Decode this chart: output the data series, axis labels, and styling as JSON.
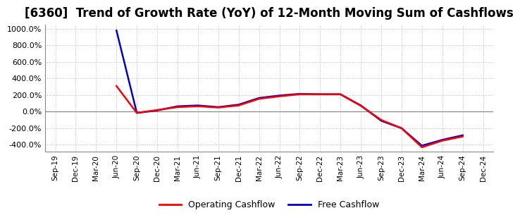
{
  "title": "[6360]  Trend of Growth Rate (YoY) of 12-Month Moving Sum of Cashflows",
  "title_fontsize": 12,
  "ylim": [
    -480,
    1050
  ],
  "yticks": [
    -400,
    -200,
    0,
    200,
    400,
    600,
    800,
    1000
  ],
  "background_color": "#ffffff",
  "grid_color": "#bbbbbb",
  "operating_color": "#ff0000",
  "free_color": "#0000cc",
  "legend_labels": [
    "Operating Cashflow",
    "Free Cashflow"
  ],
  "x_labels": [
    "Sep-19",
    "Dec-19",
    "Mar-20",
    "Jun-20",
    "Sep-20",
    "Dec-20",
    "Mar-21",
    "Jun-21",
    "Sep-21",
    "Dec-21",
    "Mar-22",
    "Jun-22",
    "Sep-22",
    "Dec-22",
    "Mar-23",
    "Jun-23",
    "Sep-23",
    "Dec-23",
    "Mar-24",
    "Jun-24",
    "Sep-24",
    "Dec-24"
  ],
  "operating_y": [
    null,
    null,
    null,
    310,
    -15,
    20,
    55,
    65,
    50,
    75,
    155,
    185,
    210,
    210,
    210,
    70,
    -100,
    -200,
    -430,
    -350,
    -300,
    null
  ],
  "free_y": [
    null,
    null,
    null,
    980,
    -15,
    15,
    65,
    75,
    55,
    85,
    165,
    195,
    215,
    210,
    210,
    75,
    -110,
    -200,
    -410,
    -340,
    -285,
    null
  ]
}
